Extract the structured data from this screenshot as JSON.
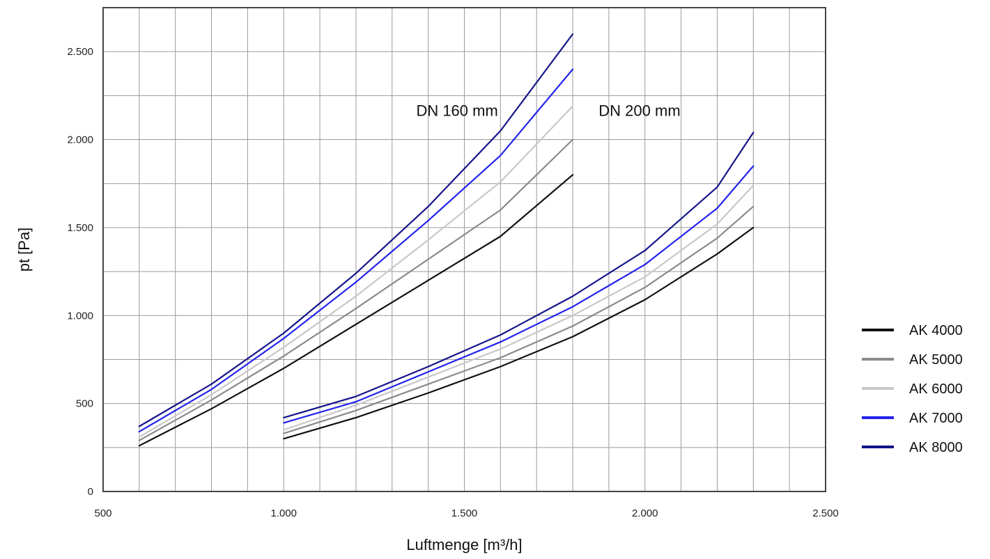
{
  "chart_data": {
    "type": "line",
    "title": "",
    "xlabel": "Luftmenge [m³/h]",
    "ylabel": "pt [Pa]",
    "xlim": [
      500,
      2500
    ],
    "ylim": [
      0,
      2750
    ],
    "x_ticks": [
      500,
      1000,
      1500,
      2000,
      2500
    ],
    "x_tick_labels": [
      "500",
      "1.000",
      "1.500",
      "2.000",
      "2.500"
    ],
    "y_ticks": [
      0,
      500,
      1000,
      1500,
      2000,
      2500
    ],
    "y_tick_labels": [
      "0",
      "500",
      "1.000",
      "1.500",
      "2.000",
      "2.500"
    ],
    "grid": true,
    "grid_x_step": 100,
    "grid_y_step": 250,
    "legend_position": "right",
    "annotations": [
      {
        "text": "DN 160 mm",
        "x": 1480,
        "y": 2135
      },
      {
        "text": "DN 200 mm",
        "x": 1985,
        "y": 2135
      }
    ],
    "legend": [
      {
        "name": "AK 4000",
        "color": "#111111"
      },
      {
        "name": "AK 5000",
        "color": "#8a8a8a"
      },
      {
        "name": "AK 6000",
        "color": "#c8c8c8"
      },
      {
        "name": "AK 7000",
        "color": "#2222ee"
      },
      {
        "name": "AK 8000",
        "color": "#14148a"
      }
    ],
    "series": [
      {
        "group": "DN 160 mm",
        "legend_ref": "AK 4000",
        "x": [
          600,
          800,
          1000,
          1200,
          1400,
          1600,
          1800
        ],
        "y": [
          260,
          470,
          700,
          950,
          1200,
          1450,
          1800
        ]
      },
      {
        "group": "DN 160 mm",
        "legend_ref": "AK 5000",
        "x": [
          600,
          800,
          1000,
          1200,
          1400,
          1600,
          1800
        ],
        "y": [
          290,
          520,
          770,
          1040,
          1320,
          1600,
          2000
        ]
      },
      {
        "group": "DN 160 mm",
        "legend_ref": "AK 6000",
        "x": [
          600,
          800,
          1000,
          1200,
          1400,
          1600,
          1800
        ],
        "y": [
          310,
          550,
          820,
          1110,
          1430,
          1760,
          2190
        ]
      },
      {
        "group": "DN 160 mm",
        "legend_ref": "AK 7000",
        "x": [
          600,
          800,
          1000,
          1200,
          1400,
          1600,
          1800
        ],
        "y": [
          340,
          580,
          870,
          1190,
          1540,
          1910,
          2400
        ]
      },
      {
        "group": "DN 160 mm",
        "legend_ref": "AK 8000",
        "x": [
          600,
          800,
          1000,
          1200,
          1400,
          1600,
          1800
        ],
        "y": [
          370,
          610,
          900,
          1240,
          1620,
          2050,
          2600
        ]
      },
      {
        "group": "DN 200 mm",
        "legend_ref": "AK 4000",
        "x": [
          1000,
          1200,
          1400,
          1600,
          1800,
          2000,
          2200,
          2300
        ],
        "y": [
          300,
          420,
          560,
          710,
          880,
          1090,
          1350,
          1500
        ]
      },
      {
        "group": "DN 200 mm",
        "legend_ref": "AK 5000",
        "x": [
          1000,
          1200,
          1400,
          1600,
          1800,
          2000,
          2200,
          2300
        ],
        "y": [
          330,
          460,
          610,
          760,
          940,
          1160,
          1440,
          1620
        ]
      },
      {
        "group": "DN 200 mm",
        "legend_ref": "AK 6000",
        "x": [
          1000,
          1200,
          1400,
          1600,
          1800,
          2000,
          2200,
          2300
        ],
        "y": [
          350,
          490,
          650,
          810,
          1000,
          1220,
          1520,
          1740
        ]
      },
      {
        "group": "DN 200 mm",
        "legend_ref": "AK 7000",
        "x": [
          1000,
          1200,
          1400,
          1600,
          1800,
          2000,
          2200,
          2300
        ],
        "y": [
          390,
          510,
          680,
          850,
          1050,
          1290,
          1610,
          1850
        ]
      },
      {
        "group": "DN 200 mm",
        "legend_ref": "AK 8000",
        "x": [
          1000,
          1200,
          1400,
          1600,
          1800,
          2000,
          2200,
          2300
        ],
        "y": [
          420,
          540,
          710,
          890,
          1110,
          1370,
          1730,
          2040
        ]
      }
    ]
  }
}
